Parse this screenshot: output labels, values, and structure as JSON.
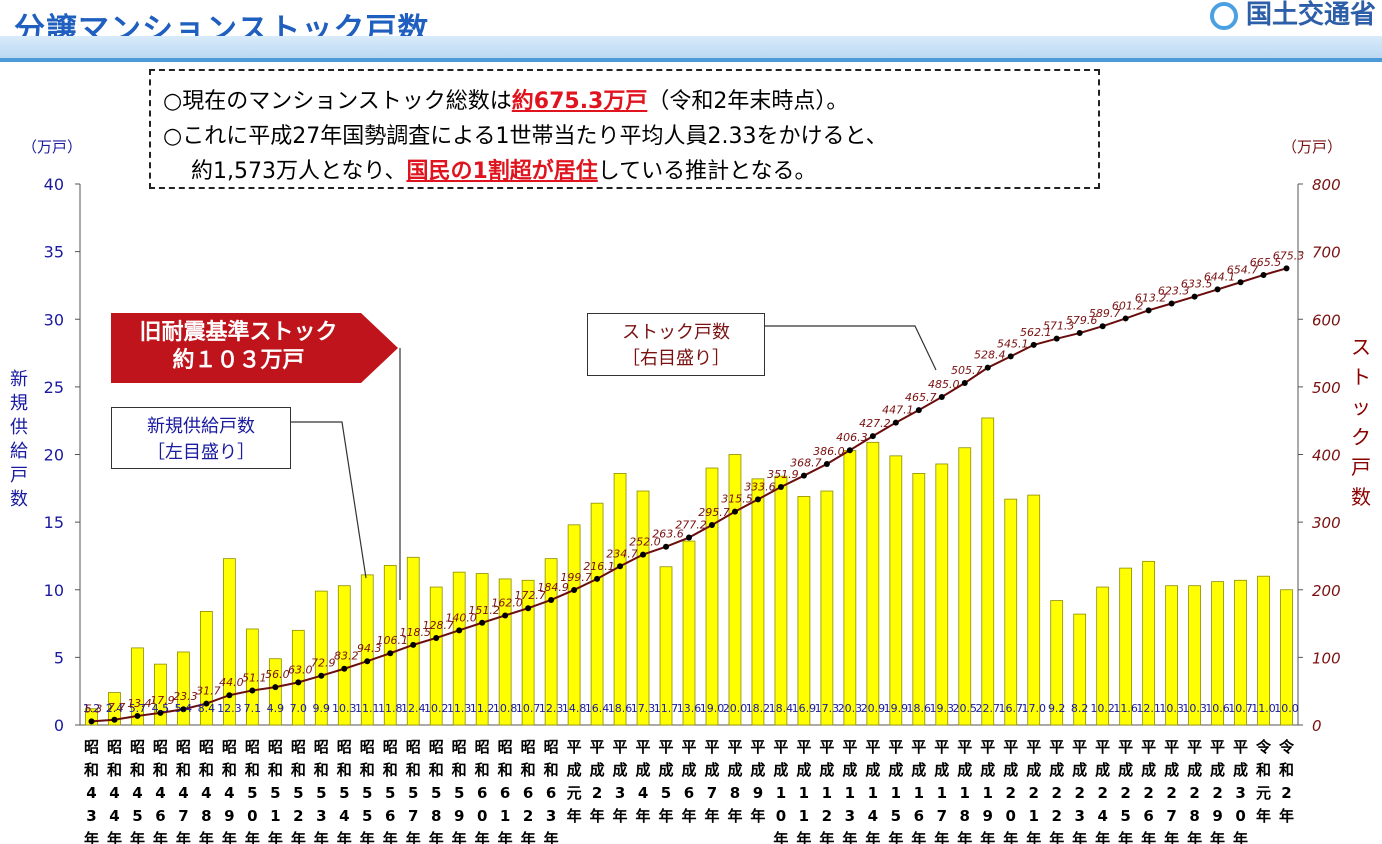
{
  "header": {
    "title": "分譲マンションストック戸数",
    "ministry": "国土交通省"
  },
  "notes": {
    "line1_a": "○現在のマンションストック総数は",
    "line1_hl": "約675.3万戸",
    "line1_b": "（令和2年末時点）。",
    "line2": "○これに平成27年国勢調査による1世帯当たり平均人員2.33をかけると、",
    "line3_a": "約1,573万人となり、",
    "line3_hl": "国民の1割超が居住",
    "line3_b": "している推計となる。"
  },
  "banner": {
    "line1": "旧耐震基準ストック",
    "line2": "約１０３万戸"
  },
  "callouts": {
    "stock_line1": "ストック戸数",
    "stock_line2": "［右目盛り］",
    "new_line1": "新規供給戸数",
    "new_line2": "［左目盛り］"
  },
  "axes": {
    "left_unit": "（万戸）",
    "right_unit": "（万戸）",
    "left_label": "新規供給戸数",
    "right_label": "ストック戸数"
  },
  "colors": {
    "bar": "#ffff00",
    "bar_edge": "#8c8c00",
    "line": "#6b0d0d",
    "left_axis": "#1a1aa0",
    "right_axis": "#7a1010",
    "title": "#1f5fbf",
    "highlight": "#e0141e",
    "banner": "#c0141c"
  },
  "chart_data": {
    "type": "bar+line",
    "categories": [
      "昭和43年",
      "昭和44年",
      "昭和45年",
      "昭和46年",
      "昭和47年",
      "昭和48年",
      "昭和49年",
      "昭和50年",
      "昭和51年",
      "昭和52年",
      "昭和53年",
      "昭和54年",
      "昭和55年",
      "昭和56年",
      "昭和57年",
      "昭和58年",
      "昭和59年",
      "昭和60年",
      "昭和61年",
      "昭和62年",
      "昭和63年",
      "平成元年",
      "平成2年",
      "平成3年",
      "平成4年",
      "平成5年",
      "平成6年",
      "平成7年",
      "平成8年",
      "平成9年",
      "平成10年",
      "平成11年",
      "平成12年",
      "平成13年",
      "平成14年",
      "平成15年",
      "平成16年",
      "平成17年",
      "平成18年",
      "平成19年",
      "平成20年",
      "平成21年",
      "平成22年",
      "平成23年",
      "平成24年",
      "平成25年",
      "平成26年",
      "平成27年",
      "平成28年",
      "平成29年",
      "平成30年",
      "令和元年",
      "令和2年"
    ],
    "series": [
      {
        "name": "新規供給戸数",
        "axis": "left",
        "type": "bar",
        "values": [
          1.2,
          2.4,
          5.7,
          4.5,
          5.4,
          8.4,
          12.3,
          7.1,
          4.9,
          7.0,
          9.9,
          10.3,
          11.1,
          11.8,
          12.4,
          10.2,
          11.3,
          11.2,
          10.8,
          10.7,
          12.3,
          14.8,
          16.4,
          18.6,
          17.3,
          11.7,
          13.6,
          19.0,
          20.0,
          18.2,
          18.4,
          16.9,
          17.3,
          20.3,
          20.9,
          19.9,
          18.6,
          19.3,
          20.5,
          22.7,
          16.7,
          17.0,
          9.2,
          8.2,
          10.2,
          11.6,
          12.1,
          10.3,
          10.3,
          10.6,
          10.7,
          11.0,
          10.0
        ]
      },
      {
        "name": "ストック戸数",
        "axis": "right",
        "type": "line",
        "values": [
          5.3,
          7.7,
          13.4,
          17.9,
          23.3,
          31.7,
          44.0,
          51.1,
          56.0,
          63.0,
          72.9,
          83.2,
          94.3,
          106.1,
          118.5,
          128.7,
          140.0,
          151.2,
          162.0,
          172.7,
          184.9,
          199.7,
          216.1,
          234.7,
          252.0,
          263.6,
          277.2,
          295.7,
          315.5,
          333.6,
          351.9,
          368.7,
          386.0,
          406.3,
          427.2,
          447.1,
          465.7,
          485.0,
          505.7,
          528.4,
          545.1,
          562.1,
          571.3,
          579.6,
          589.7,
          601.2,
          613.2,
          623.3,
          633.5,
          644.1,
          654.7,
          665.5,
          675.3
        ]
      }
    ],
    "left_ticks": [
      "0",
      "5",
      "10",
      "15",
      "20",
      "25",
      "30",
      "35",
      "40"
    ],
    "right_ticks": [
      "0",
      "100",
      "200",
      "300",
      "400",
      "500",
      "600",
      "700",
      "800"
    ],
    "ylim_left": [
      0,
      40
    ],
    "ylim_right": [
      0,
      800
    ]
  }
}
